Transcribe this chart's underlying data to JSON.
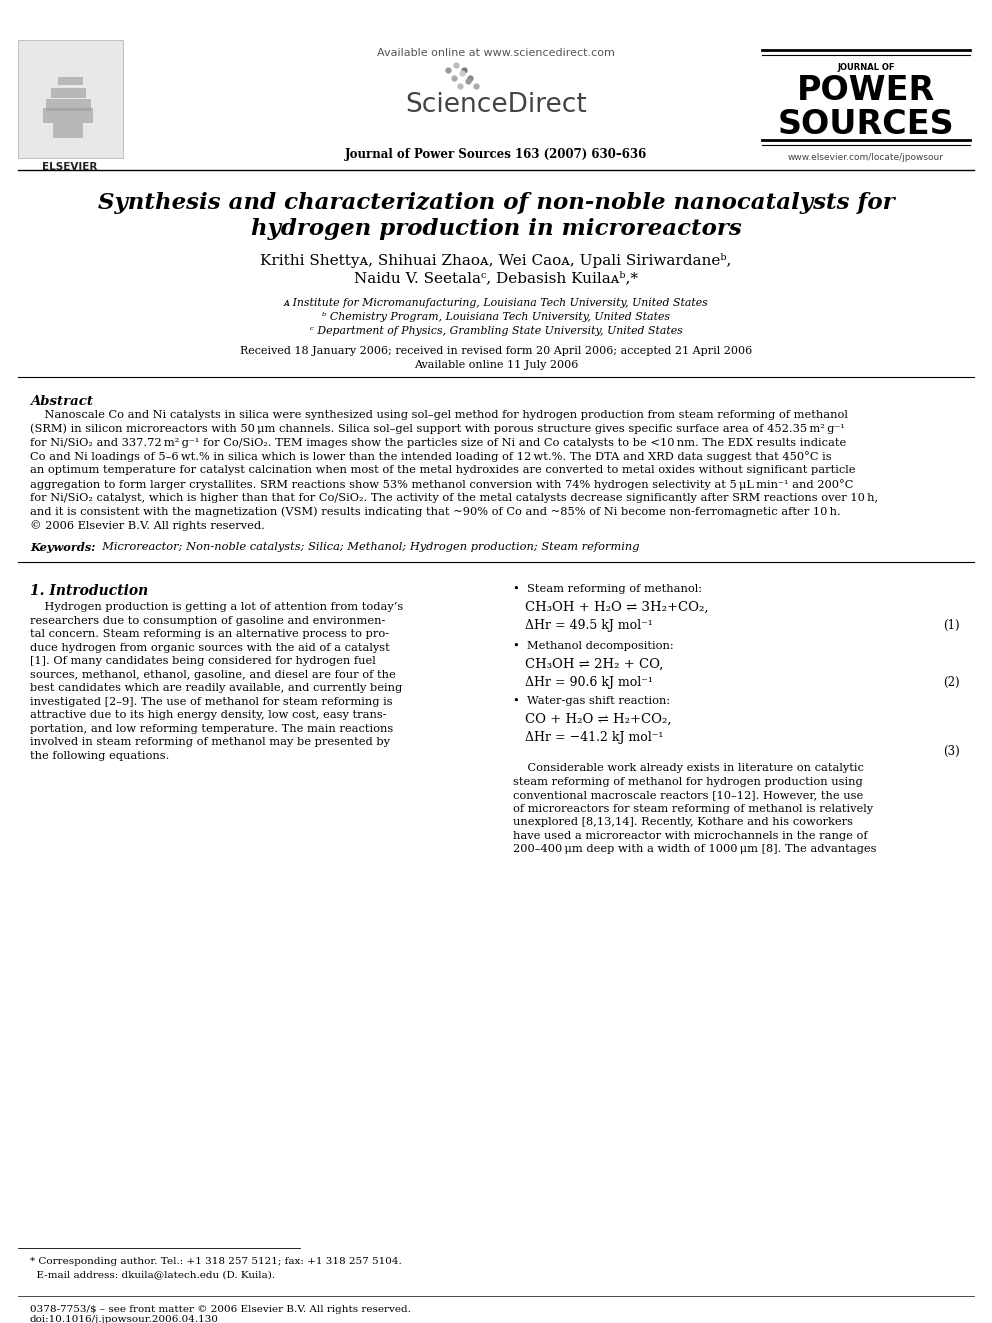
{
  "bg_color": "#ffffff",
  "text_color": "#000000",
  "elsevier_text": "ELSEVIER",
  "available_online": "Available online at www.sciencedirect.com",
  "sciencedirect": "ScienceDirect",
  "journal_name": "Journal of Power Sources 163 (2007) 630–636",
  "journal_logo_line1": "JOURNAL OF",
  "journal_logo_line2": "POWER",
  "journal_logo_line3": "SOURCES",
  "journal_url": "www.elsevier.com/locate/jpowsour",
  "paper_title_line1": "Synthesis and characterization of non-noble nanocatalysts for",
  "paper_title_line2": "hydrogen production in microreactors",
  "authors_line1": "Krithi Shettyᴀ, Shihuai Zhaoᴀ, Wei Caoᴀ, Upali Siriwardaneᵇ,",
  "authors_line2": "Naidu V. Seetalaᶜ, Debasish Kuilaᴀᵇ,*",
  "affil_a": "ᴀ Institute for Micromanufacturing, Louisiana Tech University, United States",
  "affil_b": "ᵇ Chemistry Program, Louisiana Tech University, United States",
  "affil_c": "ᶜ Department of Physics, Grambling State University, United States",
  "received": "Received 18 January 2006; received in revised form 20 April 2006; accepted 21 April 2006",
  "available": "Available online 11 July 2006",
  "abstract_title": "Abstract",
  "keywords_label": "Keywords:",
  "keywords_text": "  Microreactor; Non-noble catalysts; Silica; Methanol; Hydrogen production; Steam reforming",
  "intro_title": "1. Introduction",
  "bullet1_title": "•  Steam reforming of methanol:",
  "eq1_line1": "CH₃OH + H₂O ⇌ 3H₂+CO₂,",
  "eq1_line2": "ΔHr = 49.5 kJ mol⁻¹",
  "eq1_number": "(1)",
  "bullet2_title": "•  Methanol decomposition:",
  "eq2_line1": "CH₃OH ⇌ 2H₂ + CO,",
  "eq2_line2": "ΔHr = 90.6 kJ mol⁻¹",
  "eq2_number": "(2)",
  "bullet3_title": "•  Water-gas shift reaction:",
  "eq3_line1": "CO + H₂O ⇌ H₂+CO₂,",
  "eq3_line2": "ΔHr = −41.2 kJ mol⁻¹",
  "eq3_number": "(3)",
  "footnote_corr": "* Corresponding author. Tel.: +1 318 257 5121; fax: +1 318 257 5104.",
  "footnote_email": "  E-mail address: dkuila@latech.edu (D. Kuila).",
  "footer_line1": "0378-7753/$ – see front matter © 2006 Elsevier B.V. All rights reserved.",
  "footer_line2": "doi:10.1016/j.jpowsour.2006.04.130",
  "abstract_lines": [
    "    Nanoscale Co and Ni catalysts in silica were synthesized using sol–gel method for hydrogen production from steam reforming of methanol",
    "(SRM) in silicon microreactors with 50 μm channels. Silica sol–gel support with porous structure gives specific surface area of 452.35 m² g⁻¹",
    "for Ni/SiO₂ and 337.72 m² g⁻¹ for Co/SiO₂. TEM images show the particles size of Ni and Co catalysts to be <10 nm. The EDX results indicate",
    "Co and Ni loadings of 5–6 wt.% in silica which is lower than the intended loading of 12 wt.%. The DTA and XRD data suggest that 450°C is",
    "an optimum temperature for catalyst calcination when most of the metal hydroxides are converted to metal oxides without significant particle",
    "aggregation to form larger crystallites. SRM reactions show 53% methanol conversion with 74% hydrogen selectivity at 5 μL min⁻¹ and 200°C",
    "for Ni/SiO₂ catalyst, which is higher than that for Co/SiO₂. The activity of the metal catalysts decrease significantly after SRM reactions over 10 h,",
    "and it is consistent with the magnetization (VSM) results indicating that ~90% of Co and ~85% of Ni become non-ferromagnetic after 10 h.",
    "© 2006 Elsevier B.V. All rights reserved."
  ],
  "intro_lines_left": [
    "    Hydrogen production is getting a lot of attention from today’s",
    "researchers due to consumption of gasoline and environmen-",
    "tal concern. Steam reforming is an alternative process to pro-",
    "duce hydrogen from organic sources with the aid of a catalyst",
    "[1]. Of many candidates being considered for hydrogen fuel",
    "sources, methanol, ethanol, gasoline, and diesel are four of the",
    "best candidates which are readily available, and currently being",
    "investigated [2–9]. The use of methanol for steam reforming is",
    "attractive due to its high energy density, low cost, easy trans-",
    "portation, and low reforming temperature. The main reactions",
    "involved in steam reforming of methanol may be presented by",
    "the following equations."
  ],
  "right_col_lines": [
    "    Considerable work already exists in literature on catalytic",
    "steam reforming of methanol for hydrogen production using",
    "conventional macroscale reactors [10–12]. However, the use",
    "of microreactors for steam reforming of methanol is relatively",
    "unexplored [8,13,14]. Recently, Kothare and his coworkers",
    "have used a microreactor with microchannels in the range of",
    "200–400 μm deep with a width of 1000 μm [8]. The advantages"
  ]
}
